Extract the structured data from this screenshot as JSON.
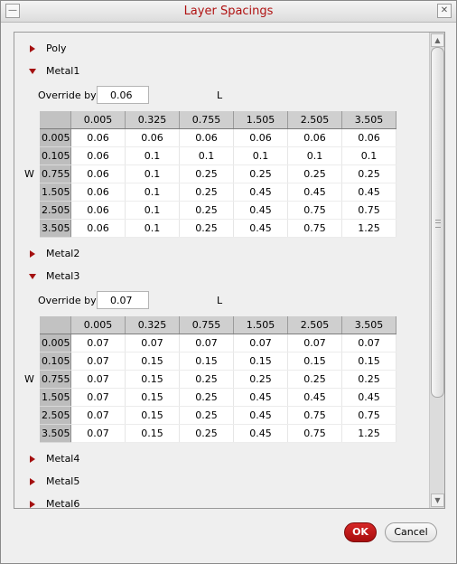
{
  "window": {
    "title": "Layer Spacings",
    "minimize_glyph": "—",
    "close_glyph": "✕"
  },
  "sections": {
    "poly": {
      "label": "Poly"
    },
    "metal1": {
      "label": "Metal1",
      "override_label": "Override by",
      "override_value": "0.06",
      "l_label": "L",
      "w_label": "W",
      "columns": [
        "0.005",
        "0.325",
        "0.755",
        "1.505",
        "2.505",
        "3.505"
      ],
      "rows": [
        {
          "header": "0.005",
          "cells": [
            "0.06",
            "0.06",
            "0.06",
            "0.06",
            "0.06",
            "0.06"
          ]
        },
        {
          "header": "0.105",
          "cells": [
            "0.06",
            "0.1",
            "0.1",
            "0.1",
            "0.1",
            "0.1"
          ]
        },
        {
          "header": "0.755",
          "cells": [
            "0.06",
            "0.1",
            "0.25",
            "0.25",
            "0.25",
            "0.25"
          ]
        },
        {
          "header": "1.505",
          "cells": [
            "0.06",
            "0.1",
            "0.25",
            "0.45",
            "0.45",
            "0.45"
          ]
        },
        {
          "header": "2.505",
          "cells": [
            "0.06",
            "0.1",
            "0.25",
            "0.45",
            "0.75",
            "0.75"
          ]
        },
        {
          "header": "3.505",
          "cells": [
            "0.06",
            "0.1",
            "0.25",
            "0.45",
            "0.75",
            "1.25"
          ]
        }
      ]
    },
    "metal2": {
      "label": "Metal2"
    },
    "metal3": {
      "label": "Metal3",
      "override_label": "Override by",
      "override_value": "0.07",
      "l_label": "L",
      "w_label": "W",
      "columns": [
        "0.005",
        "0.325",
        "0.755",
        "1.505",
        "2.505",
        "3.505"
      ],
      "rows": [
        {
          "header": "0.005",
          "cells": [
            "0.07",
            "0.07",
            "0.07",
            "0.07",
            "0.07",
            "0.07"
          ]
        },
        {
          "header": "0.105",
          "cells": [
            "0.07",
            "0.15",
            "0.15",
            "0.15",
            "0.15",
            "0.15"
          ]
        },
        {
          "header": "0.755",
          "cells": [
            "0.07",
            "0.15",
            "0.25",
            "0.25",
            "0.25",
            "0.25"
          ]
        },
        {
          "header": "1.505",
          "cells": [
            "0.07",
            "0.15",
            "0.25",
            "0.45",
            "0.45",
            "0.45"
          ]
        },
        {
          "header": "2.505",
          "cells": [
            "0.07",
            "0.15",
            "0.25",
            "0.45",
            "0.75",
            "0.75"
          ]
        },
        {
          "header": "3.505",
          "cells": [
            "0.07",
            "0.15",
            "0.25",
            "0.45",
            "0.75",
            "1.25"
          ]
        }
      ]
    },
    "metal4": {
      "label": "Metal4"
    },
    "metal5": {
      "label": "Metal5"
    },
    "metal6": {
      "label": "Metal6"
    }
  },
  "buttons": {
    "ok": "OK",
    "cancel": "Cancel"
  },
  "icons": {
    "expand": "triangle-right-icon",
    "collapse": "triangle-down-icon"
  },
  "colors": {
    "accent": "#a41010",
    "title": "#b01212",
    "ok_bg": "#c01818"
  }
}
